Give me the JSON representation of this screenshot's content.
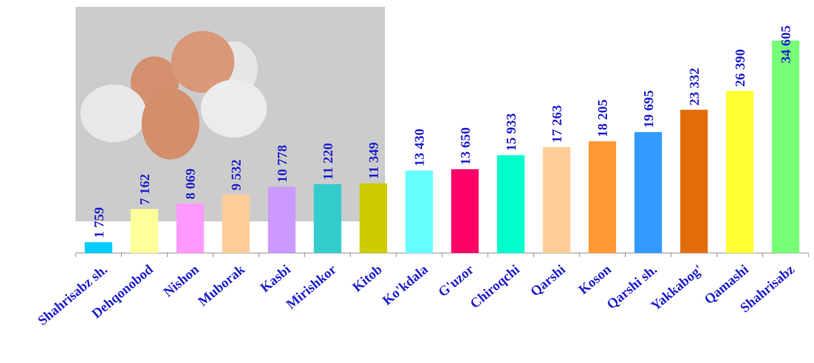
{
  "chart_data": {
    "type": "bar",
    "categories": [
      "Shahrisabz sh.",
      "Dehqonobod",
      "Nishon",
      "Muborak",
      "Kasbi",
      "Mirishkor",
      "Kitob",
      "Ko'kdala",
      "G'uzor",
      "Chiroqchi",
      "Qarshi",
      "Koson",
      "Qarshi sh.",
      "Yakkabog'",
      "Qamashi",
      "Shahrisabz"
    ],
    "values": [
      1759,
      7162,
      8069,
      9532,
      10778,
      11220,
      11349,
      13430,
      13650,
      15933,
      17263,
      18205,
      19695,
      23332,
      26390,
      34605
    ],
    "value_labels": [
      "1 759",
      "7 162",
      "8 069",
      "9 532",
      "10 778",
      "11 220",
      "11 349",
      "13 430",
      "13 650",
      "15 933",
      "17 263",
      "18 205",
      "19 695",
      "23 332",
      "26 390",
      "34 605"
    ],
    "colors": [
      "#00ccff",
      "#ffff99",
      "#ff99ff",
      "#ffcc99",
      "#cc99ff",
      "#33cccc",
      "#cccc00",
      "#66ffff",
      "#ff0066",
      "#00ffcc",
      "#ffcc99",
      "#ff9933",
      "#3399ff",
      "#e36c0a",
      "#ffff33",
      "#77ff77"
    ]
  }
}
